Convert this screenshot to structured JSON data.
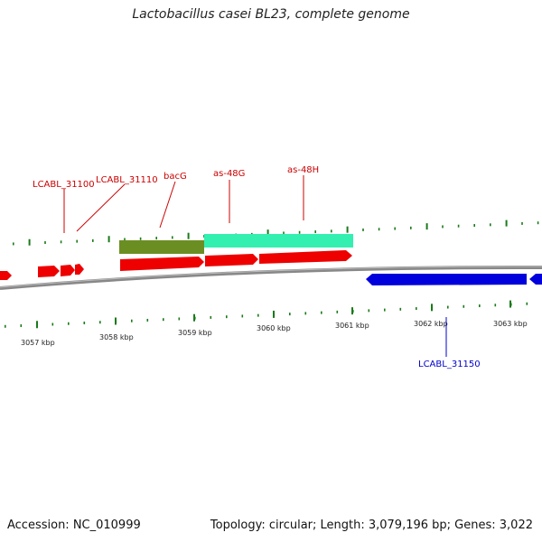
{
  "title": "Lactobacillus casei BL23, complete genome",
  "footer": {
    "accession": "Accession: NC_010999",
    "summary": "Topology: circular; Length: 3,079,196 bp; Genes: 3,022"
  },
  "colors": {
    "gene_forward": "#ee0000",
    "gene_reverse": "#0000dd",
    "feature_olive": "#6b8e23",
    "feature_aqua": "#33f0b0",
    "tick": "#1a7a1a",
    "backbone": "#888888",
    "label_forward": "#cc0000",
    "label_reverse": "#0000cc",
    "axis_text": "#222222"
  },
  "kbp_labels": [
    "3057 kbp",
    "3058 kbp",
    "3059 kbp",
    "3060 kbp",
    "3061 kbp",
    "3062 kbp",
    "3063 kbp"
  ],
  "forward_labels": [
    "LCABL_31100",
    "LCABL_31110",
    "bacG",
    "as-48G",
    "as-48H"
  ],
  "reverse_labels": [
    "LCABL_31150"
  ]
}
